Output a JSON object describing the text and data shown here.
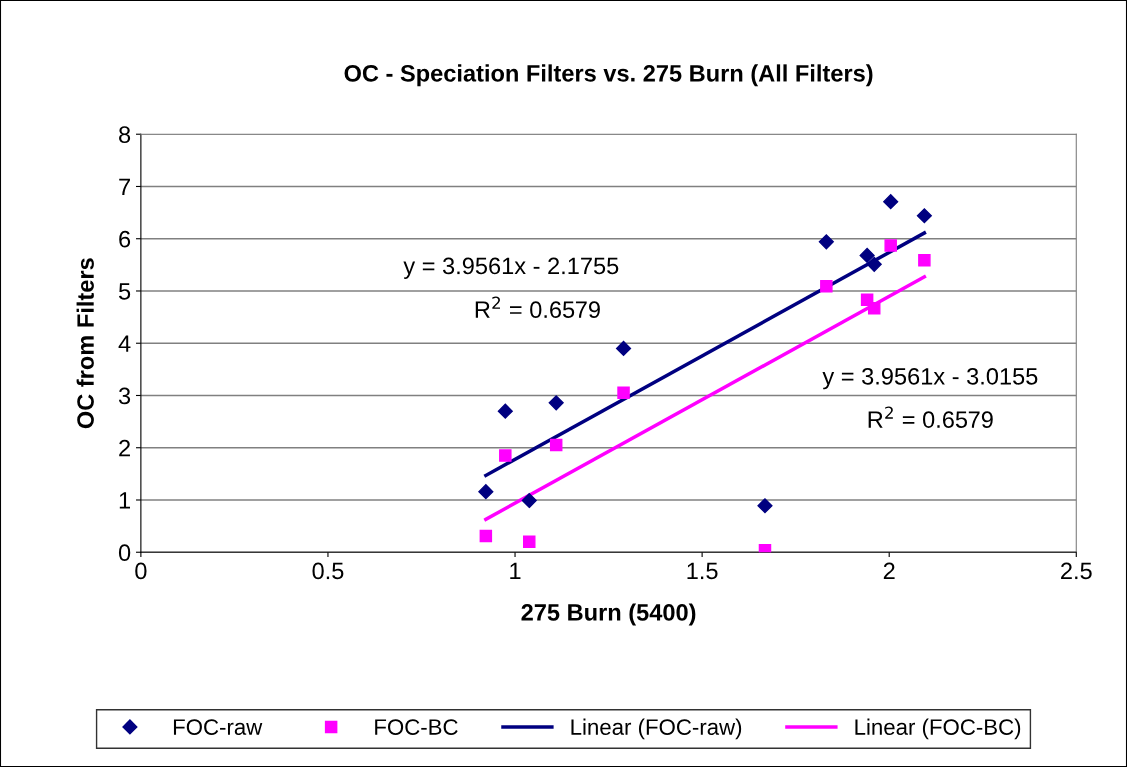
{
  "chart_data": {
    "type": "scatter",
    "title": "OC - Speciation Filters vs. 275 Burn (All Filters)",
    "xlabel": "275 Burn (5400)",
    "ylabel": "OC from Filters",
    "xlim": [
      0,
      2.5
    ],
    "xticks": [
      0,
      0.5,
      1,
      1.5,
      2,
      2.5
    ],
    "ylim": [
      0,
      8
    ],
    "yticks": [
      0,
      1,
      2,
      3,
      4,
      5,
      6,
      7,
      8
    ],
    "grid": "y",
    "legend": "bottom",
    "series": [
      {
        "name": "FOC-raw",
        "marker": "diamond",
        "color": "#000080",
        "x": [
          0.922,
          0.974,
          1.038,
          1.11,
          1.29,
          1.668,
          1.832,
          1.941,
          1.96,
          2.004,
          2.094
        ],
        "values": [
          1.16,
          2.7,
          0.99,
          2.86,
          3.9,
          0.89,
          5.94,
          5.68,
          5.51,
          6.71,
          6.44
        ]
      },
      {
        "name": "FOC-BC",
        "marker": "square",
        "color": "#ff00ff",
        "x": [
          0.922,
          0.974,
          1.038,
          1.11,
          1.29,
          1.668,
          1.832,
          1.941,
          1.96,
          2.004,
          2.094
        ],
        "values": [
          0.31,
          1.85,
          0.2,
          2.05,
          3.05,
          0.04,
          5.09,
          4.83,
          4.67,
          5.87,
          5.59
        ]
      },
      {
        "name": "Linear (FOC-raw)",
        "type": "line",
        "color": "#000080",
        "x": [
          0.922,
          2.094
        ],
        "values": [
          1.47,
          6.11
        ]
      },
      {
        "name": "Linear (FOC-BC)",
        "type": "line",
        "color": "#ff00ff",
        "x": [
          0.922,
          2.094
        ],
        "values": [
          0.63,
          5.27
        ]
      }
    ],
    "annotations": [
      "y = 3.9561x - 2.1755",
      "R$^{2}$ = 0.6579",
      "y = 3.9561x - 3.0155",
      "R$^{2}$ = 0.6579"
    ]
  }
}
